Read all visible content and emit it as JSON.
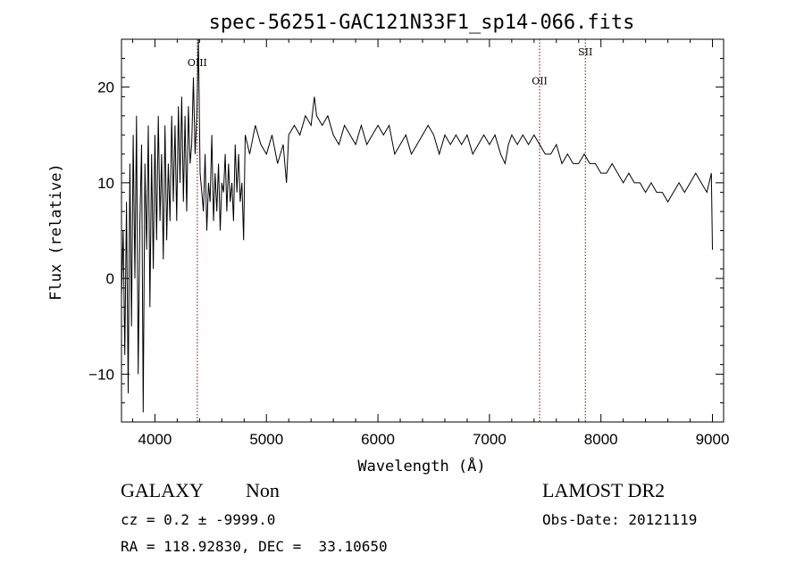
{
  "chart_data": {
    "type": "line",
    "title": "spec-56251-GAC121N33F1_sp14-066.fits",
    "xlabel": "Wavelength (Å)",
    "ylabel": "Flux (relative)",
    "xlim": [
      3700,
      9100
    ],
    "ylim": [
      -15,
      25
    ],
    "xticks": [
      4000,
      5000,
      6000,
      7000,
      8000,
      9000
    ],
    "yticks": [
      -10,
      0,
      10,
      20
    ],
    "grid": false,
    "legend": "none",
    "line_color": "#000000",
    "marker_color": "#8b0000",
    "spectral_lines": [
      {
        "name": "OIII",
        "x": 4380,
        "label_y": 22.2
      },
      {
        "name": "OII",
        "x": 7450,
        "label_y": 20.3
      },
      {
        "name": "SII",
        "x": 7860,
        "label_y": 23.3
      }
    ],
    "series": [
      {
        "x": [
          3700,
          3715,
          3730,
          3745,
          3760,
          3775,
          3790,
          3805,
          3820,
          3835,
          3850,
          3865,
          3880,
          3895,
          3910,
          3925,
          3940,
          3955,
          3970,
          3985,
          4000,
          4015,
          4030,
          4045,
          4060,
          4075,
          4090,
          4105,
          4120,
          4135,
          4150,
          4165,
          4180,
          4195,
          4210,
          4225,
          4240,
          4255,
          4270,
          4285,
          4300,
          4315,
          4330,
          4345,
          4360,
          4375,
          4390,
          4405,
          4420,
          4435,
          4450,
          4465,
          4480,
          4495,
          4510,
          4525,
          4540,
          4555,
          4570,
          4585,
          4600,
          4615,
          4630,
          4645,
          4660,
          4675,
          4690,
          4705,
          4720,
          4735,
          4750,
          4765,
          4780,
          4795,
          4810,
          4850,
          4900,
          4950,
          5000,
          5050,
          5100,
          5150,
          5180,
          5200,
          5250,
          5300,
          5350,
          5400,
          5430,
          5450,
          5500,
          5550,
          5600,
          5650,
          5700,
          5750,
          5800,
          5850,
          5900,
          5950,
          6000,
          6050,
          6100,
          6150,
          6200,
          6250,
          6300,
          6350,
          6400,
          6450,
          6500,
          6550,
          6600,
          6650,
          6700,
          6750,
          6800,
          6850,
          6900,
          6950,
          7000,
          7050,
          7100,
          7140,
          7170,
          7200,
          7250,
          7300,
          7350,
          7400,
          7450,
          7500,
          7550,
          7600,
          7650,
          7700,
          7750,
          7800,
          7850,
          7900,
          7950,
          8000,
          8050,
          8100,
          8150,
          8200,
          8250,
          8300,
          8350,
          8400,
          8450,
          8500,
          8550,
          8600,
          8650,
          8700,
          8750,
          8800,
          8850,
          8900,
          8950,
          8970,
          8990,
          9000
        ],
        "y": [
          -2,
          5,
          -8,
          8,
          -12,
          12,
          -5,
          15,
          0,
          17,
          -10,
          6,
          14,
          -14,
          12,
          3,
          16,
          -3,
          13,
          1,
          15,
          4,
          17,
          6,
          13,
          2,
          16,
          4,
          12,
          6,
          17,
          8,
          16,
          6,
          18,
          10,
          19,
          8,
          17,
          7,
          18,
          12,
          14,
          21,
          13,
          17,
          25,
          11,
          9,
          7,
          13,
          5,
          10,
          8,
          15,
          6,
          11,
          7,
          12,
          5,
          10,
          9,
          13,
          7,
          12,
          8,
          10,
          6,
          14,
          9,
          13,
          8,
          10,
          4,
          15,
          13,
          16,
          14,
          13,
          15,
          12,
          14,
          10,
          15,
          16,
          15,
          17,
          16,
          19,
          17,
          16,
          17,
          15,
          14,
          16,
          15,
          14,
          16,
          14,
          15,
          16,
          15,
          16,
          13,
          14,
          15,
          13,
          14,
          15,
          16,
          15,
          13,
          15,
          14,
          15,
          14,
          15,
          13,
          14,
          15,
          14,
          15,
          13,
          12,
          14,
          15,
          14,
          15,
          14,
          15,
          14,
          13,
          13,
          14,
          12,
          13,
          12,
          12,
          13,
          12,
          12,
          11,
          11,
          12,
          11,
          10,
          11,
          10,
          10,
          9,
          10,
          9,
          9,
          8,
          9,
          10,
          9,
          10,
          11,
          10,
          9,
          10,
          11,
          3
        ]
      }
    ]
  },
  "info": {
    "object_class": "GALAXY",
    "subclass": "Non",
    "survey": "LAMOST DR2",
    "redshift": "cz = 0.2 ± -9999.0",
    "obs_date": "Obs-Date: 20121119",
    "coords": "RA = 118.92830, DEC =  33.10650"
  }
}
